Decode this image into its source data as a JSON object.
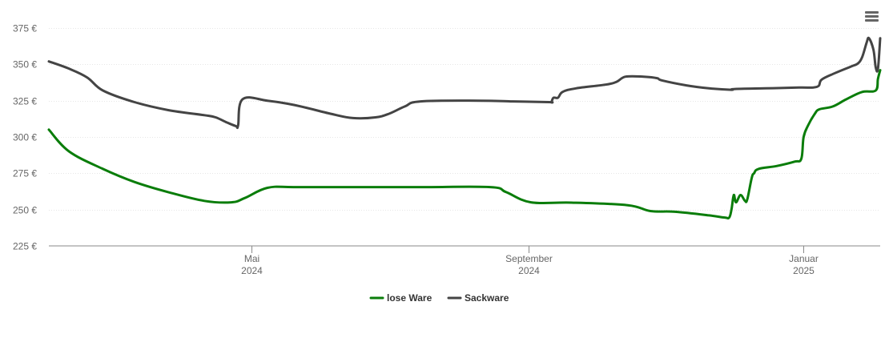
{
  "menu": {
    "icon": "hamburger-menu-icon"
  },
  "chart_data": {
    "type": "line",
    "title": "",
    "xlabel": "",
    "ylabel": "",
    "ylim": [
      225,
      375
    ],
    "y_ticks": [
      {
        "value": 375,
        "label": "375 €"
      },
      {
        "value": 350,
        "label": "350 €"
      },
      {
        "value": 325,
        "label": "325 €"
      },
      {
        "value": 300,
        "label": "300 €"
      },
      {
        "value": 275,
        "label": "275 €"
      },
      {
        "value": 250,
        "label": "250 €"
      },
      {
        "value": 225,
        "label": "225 €"
      }
    ],
    "xlim": [
      "2024-02-01",
      "2025-02-04"
    ],
    "x_ticks": [
      {
        "date": "2024-05-01",
        "line1": "Mai",
        "line2": "2024"
      },
      {
        "date": "2024-09-01",
        "line1": "September",
        "line2": "2024"
      },
      {
        "date": "2025-01-01",
        "line1": "Januar",
        "line2": "2025"
      }
    ],
    "grid": true,
    "legend": "bottom-center",
    "series": [
      {
        "name": "lose Ware",
        "color": "#0a7d0a",
        "points": [
          [
            "2024-02-01",
            305
          ],
          [
            "2024-02-10",
            290
          ],
          [
            "2024-02-25",
            278
          ],
          [
            "2024-03-10",
            269
          ],
          [
            "2024-03-25",
            262
          ],
          [
            "2024-04-10",
            256
          ],
          [
            "2024-04-22",
            255
          ],
          [
            "2024-04-28",
            258
          ],
          [
            "2024-05-08",
            265
          ],
          [
            "2024-05-20",
            265.5
          ],
          [
            "2024-06-15",
            265.5
          ],
          [
            "2024-07-15",
            265.5
          ],
          [
            "2024-08-15",
            265.5
          ],
          [
            "2024-08-22",
            262
          ],
          [
            "2024-09-02",
            255
          ],
          [
            "2024-09-20",
            254.8
          ],
          [
            "2024-10-15",
            253
          ],
          [
            "2024-10-25",
            249
          ],
          [
            "2024-11-05",
            248.5
          ],
          [
            "2024-11-20",
            246
          ],
          [
            "2024-11-27",
            244.5
          ],
          [
            "2024-11-29",
            244.5
          ],
          [
            "2024-11-30",
            250
          ],
          [
            "2024-12-01",
            260
          ],
          [
            "2024-12-02",
            255
          ],
          [
            "2024-12-04",
            260
          ],
          [
            "2024-12-06",
            256
          ],
          [
            "2024-12-07",
            257
          ],
          [
            "2024-12-09",
            272
          ],
          [
            "2024-12-10",
            275
          ],
          [
            "2024-12-12",
            278
          ],
          [
            "2024-12-20",
            280
          ],
          [
            "2024-12-28",
            283
          ],
          [
            "2024-12-31",
            285
          ],
          [
            "2025-01-01",
            300
          ],
          [
            "2025-01-03",
            308
          ],
          [
            "2025-01-06",
            316
          ],
          [
            "2025-01-08",
            319
          ],
          [
            "2025-01-14",
            321
          ],
          [
            "2025-01-20",
            326
          ],
          [
            "2025-01-27",
            331
          ],
          [
            "2025-02-02",
            332
          ],
          [
            "2025-02-03",
            340
          ],
          [
            "2025-02-04",
            346
          ]
        ]
      },
      {
        "name": "Sackware",
        "color": "#444444",
        "points": [
          [
            "2024-02-01",
            352
          ],
          [
            "2024-02-10",
            347
          ],
          [
            "2024-02-18",
            341
          ],
          [
            "2024-02-25",
            332
          ],
          [
            "2024-03-10",
            324
          ],
          [
            "2024-03-25",
            318.5
          ],
          [
            "2024-04-10",
            315
          ],
          [
            "2024-04-15",
            313.5
          ],
          [
            "2024-04-20",
            310
          ],
          [
            "2024-04-24",
            307.5
          ],
          [
            "2024-04-25",
            308
          ],
          [
            "2024-04-27",
            326
          ],
          [
            "2024-05-08",
            325
          ],
          [
            "2024-05-20",
            322
          ],
          [
            "2024-06-05",
            316
          ],
          [
            "2024-06-15",
            313
          ],
          [
            "2024-06-25",
            313.5
          ],
          [
            "2024-07-01",
            316
          ],
          [
            "2024-07-08",
            321
          ],
          [
            "2024-07-15",
            324.5
          ],
          [
            "2024-08-10",
            325
          ],
          [
            "2024-08-25",
            324.5
          ],
          [
            "2024-09-10",
            324
          ],
          [
            "2024-09-11",
            324
          ],
          [
            "2024-09-12",
            327
          ],
          [
            "2024-09-14",
            327
          ],
          [
            "2024-09-16",
            331
          ],
          [
            "2024-09-22",
            333.5
          ],
          [
            "2024-10-05",
            336
          ],
          [
            "2024-10-10",
            338
          ],
          [
            "2024-10-14",
            341.5
          ],
          [
            "2024-10-22",
            341.5
          ],
          [
            "2024-10-28",
            340.5
          ],
          [
            "2024-10-30",
            339
          ],
          [
            "2024-11-10",
            335.5
          ],
          [
            "2024-11-20",
            333.5
          ],
          [
            "2024-11-30",
            332.5
          ],
          [
            "2024-12-01",
            333
          ],
          [
            "2024-12-15",
            333.5
          ],
          [
            "2024-12-30",
            334
          ],
          [
            "2025-01-07",
            334.5
          ],
          [
            "2025-01-09",
            339.5
          ],
          [
            "2025-01-15",
            344
          ],
          [
            "2025-01-22",
            348.5
          ],
          [
            "2025-01-25",
            350.5
          ],
          [
            "2025-01-27",
            355
          ],
          [
            "2025-01-29",
            365
          ],
          [
            "2025-01-30",
            368
          ],
          [
            "2025-02-01",
            360
          ],
          [
            "2025-02-02",
            348
          ],
          [
            "2025-02-03",
            347
          ],
          [
            "2025-02-04",
            368
          ]
        ]
      }
    ]
  }
}
